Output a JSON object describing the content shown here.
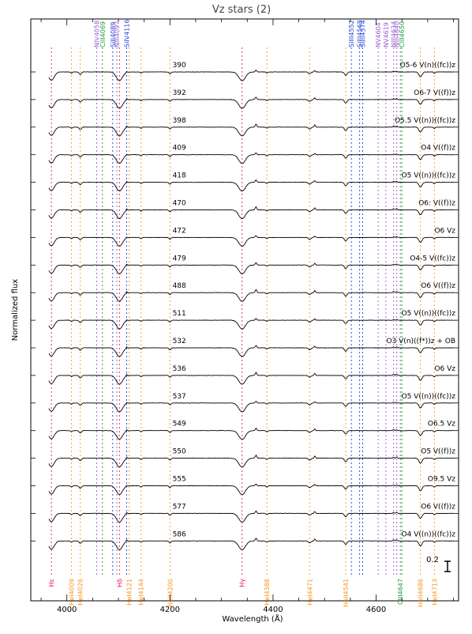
{
  "chart_data": {
    "type": "line",
    "title": "Vz stars (2)",
    "xlabel": "Wavelength (Å)",
    "ylabel": "Normalized flux",
    "xlim": [
      3930,
      4760
    ],
    "x_ticks": [
      4000,
      4200,
      4400,
      4600
    ],
    "scale_bar_label": "0.2",
    "grid": false,
    "colors": {
      "axis": "#000000",
      "spectrum": "#000000",
      "hydrogen": "#e8174c",
      "heI": "#f7941d",
      "heII": "#f7941d",
      "nitrogen": "#9b59d0",
      "silicon": "#1f3fd6",
      "carbon": "#1a9b3c"
    },
    "series": [
      {
        "label": "390",
        "sptype": "O5-6 V(n)((fc))z"
      },
      {
        "label": "392",
        "sptype": "O6-7 V((f))z"
      },
      {
        "label": "398",
        "sptype": "O5.5 V((n))((fc))z"
      },
      {
        "label": "409",
        "sptype": "O4 V((f))z"
      },
      {
        "label": "418",
        "sptype": "O5 V((n))((fc))z"
      },
      {
        "label": "470",
        "sptype": "O6: V((f))z"
      },
      {
        "label": "472",
        "sptype": "O6 Vz"
      },
      {
        "label": "479",
        "sptype": "O4-5 V((fc))z"
      },
      {
        "label": "488",
        "sptype": "O6 V((f))z"
      },
      {
        "label": "511",
        "sptype": "O5 V((n))((fc))z"
      },
      {
        "label": "532",
        "sptype": "O3 V(n)((f*))z + OB"
      },
      {
        "label": "536",
        "sptype": "O6 Vz"
      },
      {
        "label": "537",
        "sptype": "O5 V((n))((fc))z"
      },
      {
        "label": "549",
        "sptype": "O6.5 Vz"
      },
      {
        "label": "550",
        "sptype": "O5 V((f))z"
      },
      {
        "label": "555",
        "sptype": "O9.5 Vz"
      },
      {
        "label": "577",
        "sptype": "O6 V((f))z"
      },
      {
        "label": "586",
        "sptype": "O4 V((n))((fc))z"
      }
    ],
    "top_lines": [
      {
        "label": "NIV4058",
        "wavelength": 4058,
        "element": "nitrogen"
      },
      {
        "label": "CIII4069",
        "wavelength": 4069,
        "element": "carbon"
      },
      {
        "label": "SiII4089",
        "wavelength": 4089,
        "element": "silicon"
      },
      {
        "label": "NIII4097",
        "wavelength": 4097,
        "element": "nitrogen"
      },
      {
        "label": "SiIV4116",
        "wavelength": 4116,
        "element": "silicon"
      },
      {
        "label": "SiIII4552",
        "wavelength": 4552,
        "element": "silicon"
      },
      {
        "label": "SiIII4568",
        "wavelength": 4568,
        "element": "silicon"
      },
      {
        "label": "SiIII4574",
        "wavelength": 4574,
        "element": "silicon"
      },
      {
        "label": "NV4604",
        "wavelength": 4604,
        "element": "nitrogen"
      },
      {
        "label": "NV4619",
        "wavelength": 4619,
        "element": "nitrogen"
      },
      {
        "label": "NIII4634",
        "wavelength": 4634,
        "element": "nitrogen"
      },
      {
        "label": "NIII4640",
        "wavelength": 4640,
        "element": "nitrogen"
      },
      {
        "label": "CIII4650",
        "wavelength": 4650,
        "element": "carbon"
      }
    ],
    "bottom_lines": [
      {
        "label": "Hε",
        "wavelength": 3970,
        "element": "hydrogen"
      },
      {
        "label": "HeI4009",
        "wavelength": 4009,
        "element": "heI"
      },
      {
        "label": "HeI4026",
        "wavelength": 4026,
        "element": "heI"
      },
      {
        "label": "Hδ",
        "wavelength": 4102,
        "element": "hydrogen"
      },
      {
        "label": "HeI4121",
        "wavelength": 4121,
        "element": "heI"
      },
      {
        "label": "HeI4144",
        "wavelength": 4144,
        "element": "heI"
      },
      {
        "label": "HeII4200",
        "wavelength": 4200,
        "element": "heII"
      },
      {
        "label": "Hγ",
        "wavelength": 4340,
        "element": "hydrogen"
      },
      {
        "label": "HeI4388",
        "wavelength": 4388,
        "element": "heI"
      },
      {
        "label": "HeI4471",
        "wavelength": 4471,
        "element": "heI"
      },
      {
        "label": "HeII4541",
        "wavelength": 4541,
        "element": "heII"
      },
      {
        "label": "CIII4647",
        "wavelength": 4647,
        "element": "carbon"
      },
      {
        "label": "HeII4686",
        "wavelength": 4686,
        "element": "heII"
      },
      {
        "label": "HeI4713",
        "wavelength": 4713,
        "element": "heI"
      }
    ]
  }
}
